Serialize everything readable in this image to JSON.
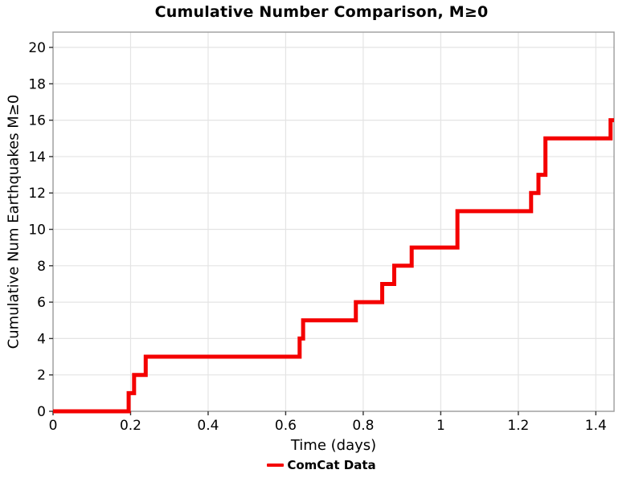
{
  "figure": {
    "title": "Cumulative Number Comparison, M≥0",
    "xlabel": "Time (days)",
    "ylabel": "Cumulative Num Earthquakes M≥0",
    "legend": {
      "label": "ComCat Data"
    }
  },
  "colors": {
    "line": "#f40000",
    "grid": "#e4e4e4",
    "spine": "#9c9c9c",
    "tick": "#333333",
    "text": "#000000",
    "background": "#ffffff"
  },
  "chart_data": {
    "type": "line",
    "style": "cumulative-step",
    "title": "Cumulative Number Comparison, M≥0",
    "xlabel": "Time (days)",
    "ylabel": "Cumulative Num Earthquakes M≥0",
    "xlim": [
      0,
      1.447
    ],
    "ylim": [
      0,
      20.84
    ],
    "grid": true,
    "legend_position": "bottom-center",
    "x_ticks": [
      0,
      0.2,
      0.4,
      0.6,
      0.8,
      1,
      1.2,
      1.4
    ],
    "x_tick_labels": [
      "0",
      "0.2",
      "0.4",
      "0.6",
      "0.8",
      "1",
      "1.2",
      "1.4"
    ],
    "y_ticks": [
      0,
      2,
      4,
      6,
      8,
      10,
      12,
      14,
      16,
      18,
      20
    ],
    "y_tick_labels": [
      "0",
      "2",
      "4",
      "6",
      "8",
      "10",
      "12",
      "14",
      "16",
      "18",
      "20"
    ],
    "series": [
      {
        "name": "ComCat Data",
        "color": "#f40000",
        "line_width": 5,
        "start": [
          0,
          0
        ],
        "end_x": 1.447,
        "events_comment": "each pair = [time_days, cumulative_count_reached]",
        "events": [
          [
            0.195,
            1
          ],
          [
            0.209,
            2
          ],
          [
            0.239,
            3
          ],
          [
            0.636,
            4
          ],
          [
            0.645,
            5
          ],
          [
            0.781,
            6
          ],
          [
            0.849,
            7
          ],
          [
            0.88,
            8
          ],
          [
            0.925,
            9
          ],
          [
            1.043,
            10
          ],
          [
            1.043,
            11
          ],
          [
            1.233,
            12
          ],
          [
            1.252,
            13
          ],
          [
            1.27,
            14
          ],
          [
            1.27,
            15
          ],
          [
            1.438,
            16
          ]
        ]
      }
    ]
  }
}
